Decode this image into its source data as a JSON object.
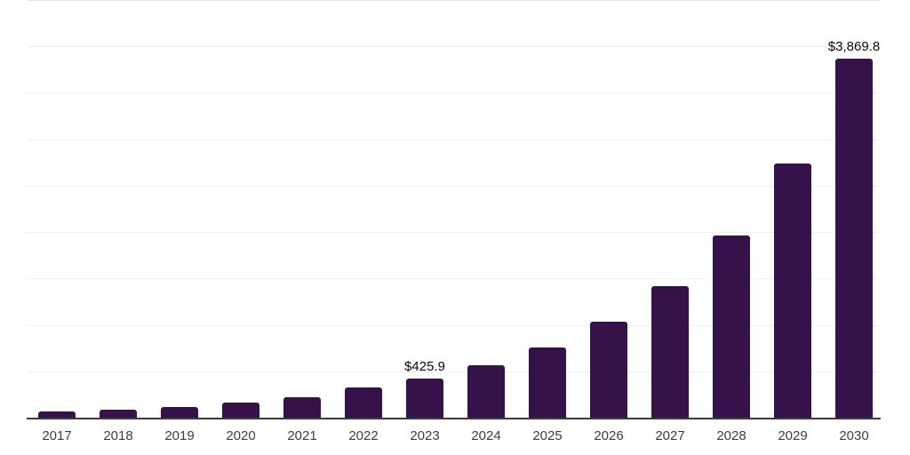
{
  "chart_data": {
    "type": "bar",
    "title": "",
    "xlabel": "",
    "ylabel": "",
    "categories": [
      "2017",
      "2018",
      "2019",
      "2020",
      "2021",
      "2022",
      "2023",
      "2024",
      "2025",
      "2026",
      "2027",
      "2028",
      "2029",
      "2030"
    ],
    "values": [
      67,
      91,
      115,
      162,
      225,
      325,
      425.9,
      565,
      755,
      1035,
      1415,
      1960,
      2735,
      3869.8
    ],
    "data_labels": [
      "",
      "",
      "",
      "",
      "",
      "",
      "$425.9",
      "",
      "",
      "",
      "",
      "",
      "",
      "$3,869.8"
    ],
    "ylim": [
      0,
      4500
    ],
    "gridline_step": 500,
    "grid": true,
    "legend_position": "none",
    "colors": {
      "bar": "#36124b",
      "axis_line": "#3a3a3a",
      "gridline": "#f1f1f1",
      "top_gridline": "#e7e7e7",
      "tick_label": "#3d3d3d",
      "data_label": "#0a0a0a",
      "background": "#ffffff"
    }
  }
}
